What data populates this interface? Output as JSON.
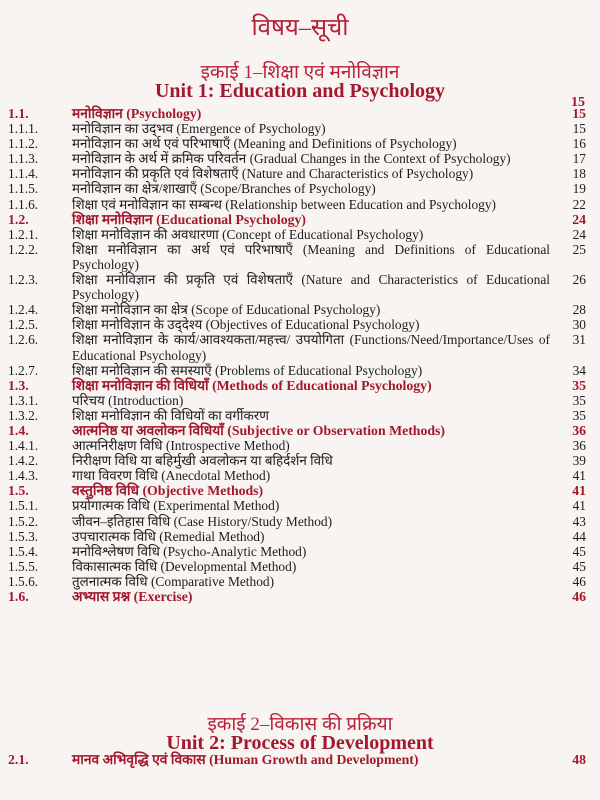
{
  "title": "विषय–सूची",
  "units": [
    {
      "hindi_title": "इकाई 1–शिक्षा एवं मनोविज्ञान",
      "english_title": "Unit 1: Education and Psychology",
      "page": "15",
      "entries": [
        {
          "num": "1.1.",
          "text": "मनोविज्ञान (Psychology)",
          "page": "15",
          "major": true
        },
        {
          "num": "1.1.1.",
          "text": "मनोविज्ञान का उद्‌भव (Emergence of Psychology)",
          "page": "15"
        },
        {
          "num": "1.1.2.",
          "text": "मनोविज्ञान का अर्थ एवं परिभाषाएँ (Meaning and Definitions of Psychology)",
          "page": "16"
        },
        {
          "num": "1.1.3.",
          "text": "मनोविज्ञान के अर्थ में क्रमिक परिवर्तन (Gradual Changes in the Context of Psychology)",
          "page": "17"
        },
        {
          "num": "1.1.4.",
          "text": "मनोविज्ञान की प्रकृति एवं विशेषताएँ (Nature and Characteristics of Psychology)",
          "page": "18"
        },
        {
          "num": "1.1.5.",
          "text": "मनोविज्ञान का क्षेत्र/शाखाएँ (Scope/Branches of Psychology)",
          "page": "19"
        },
        {
          "num": "1.1.6.",
          "text": "शिक्षा एवं मनोविज्ञान का सम्बन्ध (Relationship between Education and Psychology)",
          "page": "22"
        },
        {
          "num": "1.2.",
          "text": "शिक्षा मनोविज्ञान (Educational Psychology)",
          "page": "24",
          "major": true
        },
        {
          "num": "1.2.1.",
          "text": "शिक्षा मनोविज्ञान की अवधारणा (Concept of Educational Psychology)",
          "page": "24"
        },
        {
          "num": "1.2.2.",
          "text": "शिक्षा मनोविज्ञान का अर्थ एवं परिभाषाएँ (Meaning and Definitions of Educational Psychology)",
          "page": "25"
        },
        {
          "num": "1.2.3.",
          "text": "शिक्षा मनोविज्ञान की प्रकृति एवं विशेषताएँ (Nature and Characteristics of Educational Psychology)",
          "page": "26"
        },
        {
          "num": "1.2.4.",
          "text": "शिक्षा मनोविज्ञान का क्षेत्र (Scope of Educational Psychology)",
          "page": "28"
        },
        {
          "num": "1.2.5.",
          "text": "शिक्षा मनोविज्ञान के उद्‌देश्य (Objectives of Educational Psychology)",
          "page": "30"
        },
        {
          "num": "1.2.6.",
          "text": "शिक्षा मनोविज्ञान के कार्य/आवश्यकता/महत्त्व/ उपयोगिता (Functions/Need/Importance/Uses of Educational Psychology)",
          "page": "31"
        },
        {
          "num": "1.2.7.",
          "text": "शिक्षा मनोविज्ञान की समस्याएँ (Problems of Educational Psychology)",
          "page": "34"
        },
        {
          "num": "1.3.",
          "text": "शिक्षा मनोविज्ञान की विधियाँ (Methods of Educational Psychology)",
          "page": "35",
          "major": true
        },
        {
          "num": "1.3.1.",
          "text": "परिचय (Introduction)",
          "page": "35"
        },
        {
          "num": "1.3.2.",
          "text": "शिक्षा मनोविज्ञान की विधियों का वर्गीकरण",
          "page": "35"
        },
        {
          "num": "1.4.",
          "text": "आत्मनिष्ठ या अवलोकन विधियाँ (Subjective or Observation Methods)",
          "page": "36",
          "major": true
        },
        {
          "num": "1.4.1.",
          "text": "आत्मनिरीक्षण विधि (Introspective Method)",
          "page": "36"
        },
        {
          "num": "1.4.2.",
          "text": "निरीक्षण विधि या बहिर्मुखी अवलोकन या बहिर्दर्शन विधि",
          "page": "39"
        },
        {
          "num": "1.4.3.",
          "text": "गाथा विवरण विधि (Anecdotal Method)",
          "page": "41"
        },
        {
          "num": "1.5.",
          "text": "वस्तुनिष्ठ विधि (Objective Methods)",
          "page": "41",
          "major": true
        },
        {
          "num": "1.5.1.",
          "text": "प्रयोगात्मक विधि (Experimental Method)",
          "page": "41"
        },
        {
          "num": "1.5.2.",
          "text": "जीवन–इतिहास विधि (Case History/Study Method)",
          "page": "43"
        },
        {
          "num": "1.5.3.",
          "text": "उपचारात्मक विधि (Remedial Method)",
          "page": "44"
        },
        {
          "num": "1.5.4.",
          "text": "मनोविश्लेषण विधि (Psycho-Analytic Method)",
          "page": "45"
        },
        {
          "num": "1.5.5.",
          "text": "विकासात्मक विधि (Developmental Method)",
          "page": "45"
        },
        {
          "num": "1.5.6.",
          "text": "तुलनात्मक विधि (Comparative Method)",
          "page": "46"
        },
        {
          "num": "1.6.",
          "text": "अभ्यास प्रश्न (Exercise)",
          "page": "46",
          "major": true
        }
      ]
    },
    {
      "hindi_title": "इकाई 2–विकास की प्रक्रिया",
      "english_title": "Unit 2: Process of Development",
      "entries": [
        {
          "num": "2.1.",
          "text": "मानव अभिवृद्धि एवं विकास (Human Growth and Development)",
          "page": "48",
          "major": true
        }
      ]
    }
  ],
  "colors": {
    "heading": "#b8203a",
    "major_entry": "#a3182e",
    "text": "#1e1c1e",
    "paper": "#f7f4f1"
  }
}
